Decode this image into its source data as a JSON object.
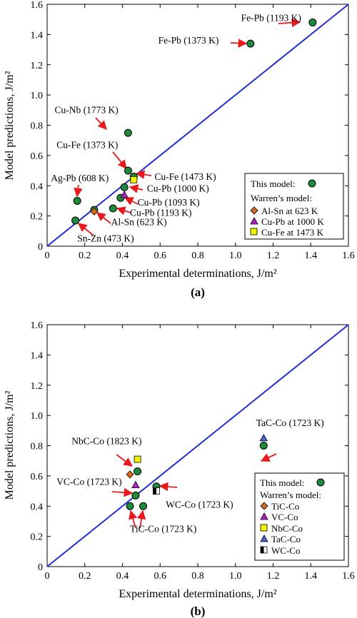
{
  "figure": {
    "colors": {
      "diagonal": "#1f2fd1",
      "this_model": "#1e8a3c",
      "orange": "#d2691e",
      "magenta": "#b31fc8",
      "yellow": "#f2f200",
      "triangle_blue": "#4a63d8",
      "arrow": "#e8191c"
    }
  },
  "chart_data": [
    {
      "type": "scatter",
      "panel_label": "(a)",
      "xlabel": "Experimental determinations, J/m²",
      "ylabel": "Model predictions, J/m²",
      "xlim": [
        0,
        1.6
      ],
      "ylim": [
        0,
        1.6
      ],
      "xticks": [
        "0",
        "0.2",
        "0.4",
        "0.6",
        "0.8",
        "1.0",
        "1.2",
        "1.4",
        "1.6"
      ],
      "yticks": [
        "0",
        "0.2",
        "0.4",
        "0.6",
        "0.8",
        "1.0",
        "1.2",
        "1.4",
        "1.6"
      ],
      "diagonal": [
        [
          0,
          0
        ],
        [
          1.6,
          1.6
        ]
      ],
      "series": [
        {
          "name": "This model:",
          "marker": "circle",
          "color": "#1e8a3c",
          "points": [
            [
              1.41,
              1.48
            ],
            [
              1.08,
              1.34
            ],
            [
              0.43,
              0.75
            ],
            [
              0.43,
              0.5
            ],
            [
              0.41,
              0.39
            ],
            [
              0.39,
              0.32
            ],
            [
              0.35,
              0.25
            ],
            [
              0.16,
              0.3
            ],
            [
              0.25,
              0.24
            ],
            [
              0.15,
              0.17
            ],
            [
              0.46,
              0.46
            ]
          ]
        },
        {
          "name": "Al-Sn at 623 K",
          "marker": "diamond",
          "color": "#d2691e",
          "points": [
            [
              0.25,
              0.23
            ]
          ]
        },
        {
          "name": "Cu-Pb at 1000 K",
          "marker": "triangle",
          "color": "#b31fc8",
          "points": [
            [
              0.41,
              0.34
            ]
          ]
        },
        {
          "name": "Cu-Fe at 1473 K",
          "marker": "square",
          "color": "#f2f200",
          "points": [
            [
              0.46,
              0.44
            ]
          ]
        }
      ],
      "legend": {
        "this_model": "This model:",
        "warren": "Warren’s model:"
      },
      "annotations": [
        {
          "text": "Fe-Pb (1193 K)",
          "tx": 1.03,
          "ty": 1.49
        },
        {
          "text": "Fe-Pb (1373 K)",
          "tx": 0.59,
          "ty": 1.34
        },
        {
          "text": "Cu-Nb (1773 K)",
          "tx": 0.04,
          "ty": 0.88
        },
        {
          "text": "Cu-Fe (1373 K)",
          "tx": 0.05,
          "ty": 0.65
        },
        {
          "text": "Ag-Pb (608 K)",
          "tx": 0.02,
          "ty": 0.43
        },
        {
          "text": "Cu-Fe (1473 K)",
          "tx": 0.57,
          "ty": 0.44
        },
        {
          "text": "Cu-Pb (1000 K)",
          "tx": 0.53,
          "ty": 0.36
        },
        {
          "text": "Cu-Pb (1093 K)",
          "tx": 0.48,
          "ty": 0.27
        },
        {
          "text": "Cu-Pb (1193 K)",
          "tx": 0.44,
          "ty": 0.2
        },
        {
          "text": "Al-Sn (623 K)",
          "tx": 0.34,
          "ty": 0.14
        },
        {
          "text": "Sn-Zn (473 K)",
          "tx": 0.16,
          "ty": 0.03
        }
      ]
    },
    {
      "type": "scatter",
      "panel_label": "(b)",
      "xlabel": "Experimental determinations, J/m²",
      "ylabel": "Model predictions, J/m²",
      "xlim": [
        0,
        1.6
      ],
      "ylim": [
        0,
        1.6
      ],
      "xticks": [
        "0",
        "0.2",
        "0.4",
        "0.6",
        "0.8",
        "1.0",
        "1.2",
        "1.4",
        "1.6"
      ],
      "yticks": [
        "0",
        "0.2",
        "0.4",
        "0.6",
        "0.8",
        "1.0",
        "1.2",
        "1.4",
        "1.6"
      ],
      "diagonal": [
        [
          0,
          0
        ],
        [
          1.6,
          1.6
        ]
      ],
      "series": [
        {
          "name": "This model:",
          "marker": "circle",
          "color": "#1e8a3c",
          "points": [
            [
              1.15,
              0.8
            ],
            [
              0.48,
              0.63
            ],
            [
              0.47,
              0.47
            ],
            [
              0.58,
              0.53
            ],
            [
              0.44,
              0.4
            ],
            [
              0.51,
              0.4
            ]
          ]
        },
        {
          "name": "TiC-Co",
          "marker": "diamond",
          "color": "#d2691e",
          "points": [
            [
              0.44,
              0.61
            ]
          ]
        },
        {
          "name": "VC-Co",
          "marker": "triangle",
          "color": "#b31fc8",
          "points": [
            [
              0.47,
              0.54
            ]
          ]
        },
        {
          "name": "NbC-Co",
          "marker": "square",
          "color": "#f2f200",
          "points": [
            [
              0.48,
              0.71
            ]
          ]
        },
        {
          "name": "TaC-Co",
          "marker": "triangle",
          "color": "#4a63d8",
          "points": [
            [
              1.15,
              0.85
            ]
          ]
        },
        {
          "name": "WC-Co",
          "marker": "halfsquare",
          "color": "#000000",
          "points": [
            [
              0.58,
              0.5
            ]
          ]
        }
      ],
      "legend": {
        "this_model": "This model:",
        "warren": "Warren’s model:"
      },
      "annotations": [
        {
          "text": "TaC-Co (1723 K)",
          "tx": 1.11,
          "ty": 0.93
        },
        {
          "text": "NbC-Co (1823 K)",
          "tx": 0.13,
          "ty": 0.81
        },
        {
          "text": "VC-Co (1723 K)",
          "tx": 0.05,
          "ty": 0.54
        },
        {
          "text": "WC-Co (1723 K)",
          "tx": 0.63,
          "ty": 0.39
        },
        {
          "text": "TiC-Co (1723 K)",
          "tx": 0.44,
          "ty": 0.23
        }
      ]
    }
  ]
}
